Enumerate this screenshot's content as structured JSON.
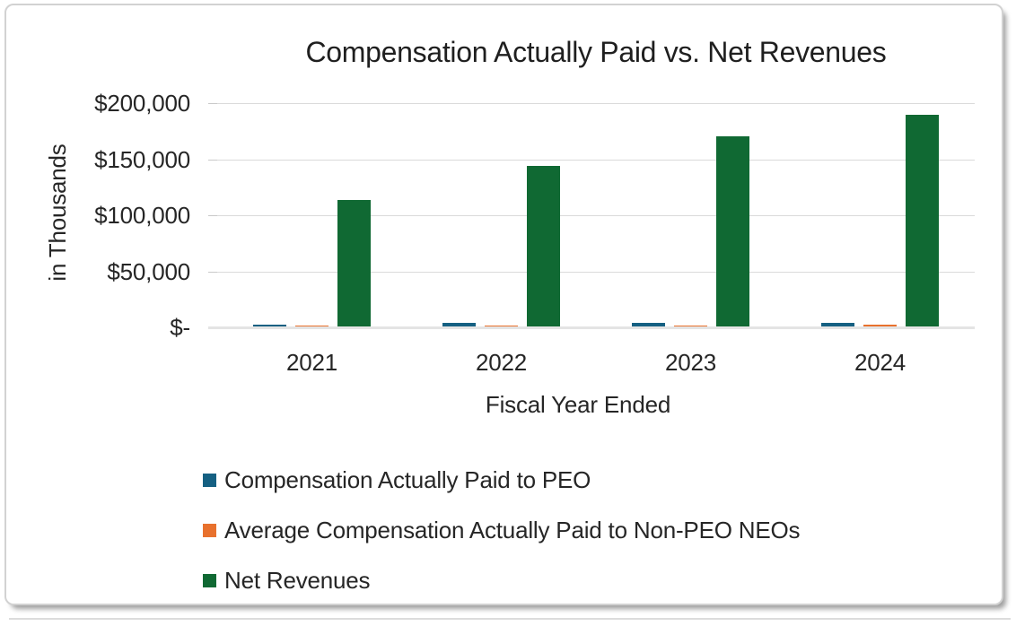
{
  "chart_data": {
    "type": "bar",
    "title": "Compensation Actually Paid vs. Net Revenues",
    "xlabel": "Fiscal Year Ended",
    "ylabel": "in Thousands",
    "categories": [
      "2021",
      "2022",
      "2023",
      "2024"
    ],
    "series": [
      {
        "name": "Compensation Actually Paid to PEO",
        "color": "#156082",
        "values": [
          1500,
          3000,
          3000,
          3000
        ]
      },
      {
        "name": "Average Compensation Actually Paid to Non-PEO NEOs",
        "color": "#E8712D",
        "values": [
          800,
          1100,
          1100,
          1500
        ]
      },
      {
        "name": "Net Revenues",
        "color": "#106933",
        "values": [
          113000,
          143000,
          170000,
          189000
        ]
      }
    ],
    "ylim": [
      0,
      200000
    ],
    "yticks": [
      {
        "value": 0,
        "label": "$-"
      },
      {
        "value": 50000,
        "label": "$50,000"
      },
      {
        "value": 100000,
        "label": "$100,000"
      },
      {
        "value": 150000,
        "label": "$150,000"
      },
      {
        "value": 200000,
        "label": "$200,000"
      }
    ],
    "grid": true,
    "legend_position": "bottom-left"
  }
}
